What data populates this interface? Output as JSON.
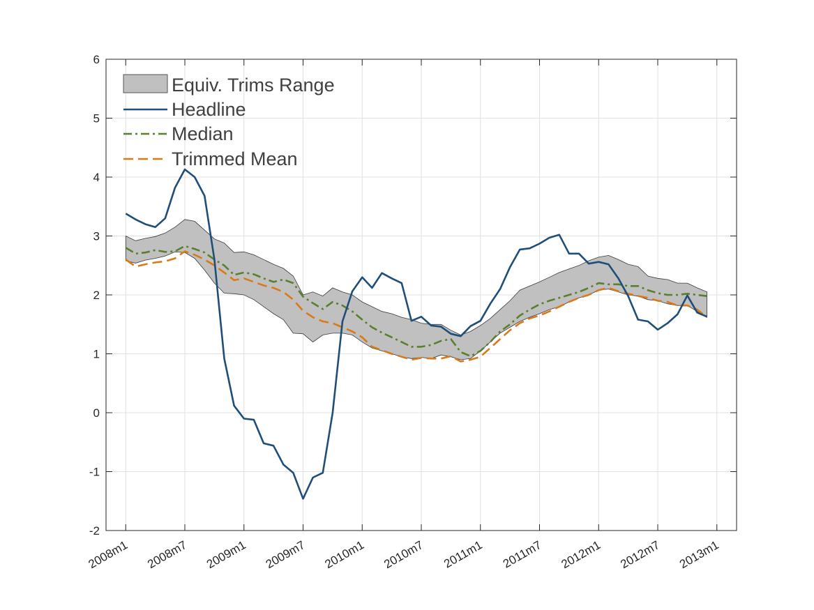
{
  "chart_data": {
    "type": "line",
    "title": "",
    "xlabel": "",
    "ylabel": "",
    "ylim": [
      -2,
      6
    ],
    "yticks": [
      -2,
      -1,
      0,
      1,
      2,
      3,
      4,
      5,
      6
    ],
    "xlim": [
      -2,
      62
    ],
    "xticks": [
      {
        "label": "2008m1",
        "month": 0
      },
      {
        "label": "2008m7",
        "month": 6
      },
      {
        "label": "2009m1",
        "month": 12
      },
      {
        "label": "2009m7",
        "month": 18
      },
      {
        "label": "2010m1",
        "month": 24
      },
      {
        "label": "2010m7",
        "month": 30
      },
      {
        "label": "2011m1",
        "month": 36
      },
      {
        "label": "2011m7",
        "month": 42
      },
      {
        "label": "2012m1",
        "month": 48
      },
      {
        "label": "2012m7",
        "month": 54
      },
      {
        "label": "2013m1",
        "month": 60
      }
    ],
    "grid": true,
    "legend_position": "top-left",
    "legend": [
      {
        "key": "band",
        "label": "Equiv. Trims Range",
        "style": "patch",
        "color": "#c0c0c0"
      },
      {
        "key": "headline",
        "label": "Headline",
        "style": "solid",
        "color": "#1f4e79"
      },
      {
        "key": "median",
        "label": "Median",
        "style": "dashdot",
        "color": "#5a7f2e"
      },
      {
        "key": "trimmed",
        "label": "Trimmed Mean",
        "style": "dashed",
        "color": "#d97a1a"
      }
    ],
    "months": [
      0,
      1,
      2,
      3,
      4,
      5,
      6,
      7,
      8,
      9,
      10,
      11,
      12,
      13,
      14,
      15,
      16,
      17,
      18,
      19,
      20,
      21,
      22,
      23,
      24,
      25,
      26,
      27,
      28,
      29,
      30,
      31,
      32,
      33,
      34,
      35,
      36,
      37,
      38,
      39,
      40,
      41,
      42,
      43,
      44,
      45,
      46,
      47,
      48,
      49,
      50,
      51,
      52,
      53,
      54,
      55,
      56,
      57,
      58,
      59
    ],
    "band_upper": [
      3.0,
      2.92,
      2.96,
      2.99,
      3.05,
      3.15,
      3.28,
      3.25,
      3.1,
      2.95,
      2.88,
      2.72,
      2.73,
      2.68,
      2.6,
      2.52,
      2.45,
      2.32,
      2.0,
      2.05,
      1.98,
      2.12,
      2.05,
      2.0,
      1.88,
      1.8,
      1.72,
      1.68,
      1.62,
      1.58,
      1.52,
      1.5,
      1.5,
      1.4,
      1.32,
      1.38,
      1.48,
      1.6,
      1.75,
      1.9,
      2.08,
      2.15,
      2.22,
      2.3,
      2.38,
      2.44,
      2.5,
      2.58,
      2.64,
      2.67,
      2.6,
      2.52,
      2.48,
      2.32,
      2.28,
      2.26,
      2.2,
      2.2,
      2.12,
      2.05
    ],
    "band_lower": [
      2.58,
      2.54,
      2.59,
      2.62,
      2.66,
      2.73,
      2.72,
      2.62,
      2.42,
      2.2,
      2.03,
      2.02,
      2.0,
      1.92,
      1.8,
      1.68,
      1.58,
      1.35,
      1.34,
      1.2,
      1.32,
      1.35,
      1.35,
      1.32,
      1.2,
      1.1,
      1.05,
      1.0,
      0.95,
      0.92,
      0.94,
      0.92,
      0.98,
      0.95,
      0.9,
      0.92,
      1.05,
      1.2,
      1.35,
      1.45,
      1.55,
      1.62,
      1.68,
      1.75,
      1.8,
      1.88,
      1.95,
      2.0,
      2.08,
      2.1,
      2.05,
      2.0,
      1.98,
      1.92,
      1.9,
      1.85,
      1.82,
      1.82,
      1.72,
      1.62
    ],
    "series": [
      {
        "key": "headline",
        "name": "Headline",
        "color": "#1f4e79",
        "dash": "",
        "values": [
          3.38,
          3.28,
          3.2,
          3.15,
          3.3,
          3.82,
          4.13,
          4.0,
          3.68,
          2.6,
          0.92,
          0.12,
          -0.1,
          -0.12,
          -0.52,
          -0.56,
          -0.88,
          -1.02,
          -1.46,
          -1.1,
          -1.02,
          0.0,
          1.55,
          2.06,
          2.3,
          2.12,
          2.37,
          2.28,
          2.2,
          1.56,
          1.63,
          1.48,
          1.46,
          1.34,
          1.3,
          1.47,
          1.56,
          1.85,
          2.1,
          2.47,
          2.77,
          2.79,
          2.87,
          2.97,
          3.02,
          2.7,
          2.7,
          2.53,
          2.56,
          2.52,
          2.28,
          1.98,
          1.58,
          1.55,
          1.41,
          1.52,
          1.67,
          1.99,
          1.7,
          1.63
        ]
      },
      {
        "key": "median",
        "name": "Median",
        "color": "#5a7f2e",
        "dash": "12 5 3 5",
        "values": [
          2.8,
          2.7,
          2.72,
          2.76,
          2.73,
          2.74,
          2.83,
          2.78,
          2.72,
          2.6,
          2.5,
          2.34,
          2.38,
          2.35,
          2.28,
          2.22,
          2.26,
          2.2,
          1.97,
          1.86,
          1.76,
          1.88,
          1.82,
          1.72,
          1.58,
          1.45,
          1.36,
          1.28,
          1.2,
          1.12,
          1.12,
          1.15,
          1.22,
          1.25,
          1.03,
          0.96,
          1.05,
          1.2,
          1.38,
          1.5,
          1.65,
          1.75,
          1.84,
          1.9,
          1.95,
          2.0,
          2.05,
          2.12,
          2.2,
          2.18,
          2.18,
          2.15,
          2.15,
          2.08,
          2.03,
          2.0,
          2.0,
          2.02,
          2.0,
          1.98
        ]
      },
      {
        "key": "trimmed",
        "name": "Trimmed Mean",
        "color": "#d97a1a",
        "dash": "14 7",
        "values": [
          2.6,
          2.48,
          2.52,
          2.55,
          2.57,
          2.62,
          2.74,
          2.68,
          2.6,
          2.5,
          2.38,
          2.25,
          2.28,
          2.22,
          2.16,
          2.12,
          2.05,
          1.92,
          1.73,
          1.62,
          1.55,
          1.52,
          1.45,
          1.38,
          1.28,
          1.12,
          1.06,
          1.0,
          0.95,
          0.9,
          0.93,
          0.92,
          0.92,
          0.96,
          0.87,
          0.9,
          0.95,
          1.1,
          1.25,
          1.4,
          1.52,
          1.6,
          1.65,
          1.72,
          1.8,
          1.88,
          1.95,
          2.0,
          2.08,
          2.12,
          2.06,
          2.02,
          1.98,
          1.95,
          1.9,
          1.88,
          1.82,
          1.82,
          1.75,
          1.62
        ]
      }
    ]
  }
}
